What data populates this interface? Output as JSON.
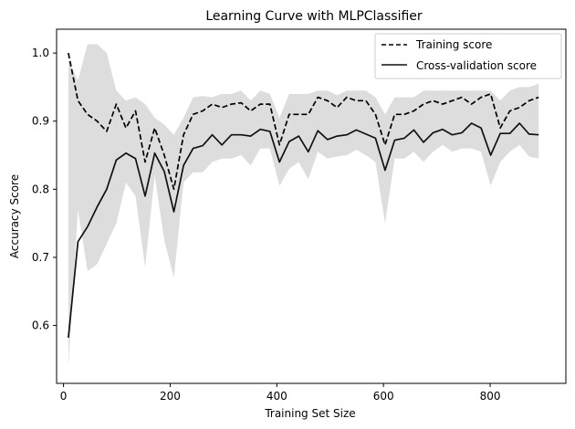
{
  "chart_data": {
    "type": "line",
    "title": "Learning Curve with MLPClassifier",
    "xlabel": "Training Set Size",
    "ylabel": "Accuracy Score",
    "xlim": [
      -13,
      942
    ],
    "ylim": [
      0.515,
      1.035
    ],
    "xticks": [
      0,
      200,
      400,
      600,
      800
    ],
    "yticks": [
      0.6,
      0.7,
      0.8,
      0.9,
      1.0
    ],
    "ytick_labels": [
      "0.6",
      "0.7",
      "0.8",
      "0.9",
      "1.0"
    ],
    "legend": {
      "position": "top-right"
    },
    "colors": {
      "training": "#000000",
      "cv": "#111111",
      "band": "#dddddd"
    },
    "x": [
      9,
      27,
      45,
      63,
      81,
      99,
      117,
      135,
      153,
      171,
      189,
      207,
      225,
      243,
      261,
      279,
      297,
      315,
      333,
      351,
      369,
      387,
      405,
      423,
      441,
      459,
      477,
      495,
      513,
      531,
      549,
      567,
      585,
      603,
      621,
      639,
      657,
      675,
      693,
      711,
      729,
      747,
      765,
      783,
      801,
      819,
      837,
      855,
      873,
      891
    ],
    "series": [
      {
        "name": "Training score",
        "style": "dashed",
        "values": [
          1.0,
          0.93,
          0.91,
          0.9,
          0.885,
          0.925,
          0.89,
          0.915,
          0.84,
          0.89,
          0.85,
          0.8,
          0.88,
          0.91,
          0.915,
          0.925,
          0.92,
          0.925,
          0.927,
          0.915,
          0.925,
          0.925,
          0.865,
          0.91,
          0.91,
          0.91,
          0.935,
          0.93,
          0.92,
          0.935,
          0.93,
          0.93,
          0.91,
          0.865,
          0.91,
          0.91,
          0.915,
          0.925,
          0.93,
          0.925,
          0.93,
          0.935,
          0.925,
          0.935,
          0.94,
          0.89,
          0.915,
          0.92,
          0.93,
          0.935
        ]
      },
      {
        "name": "Cross-validation score",
        "style": "solid",
        "values": [
          0.582,
          0.723,
          0.745,
          0.774,
          0.8,
          0.843,
          0.853,
          0.845,
          0.79,
          0.853,
          0.826,
          0.767,
          0.835,
          0.86,
          0.864,
          0.88,
          0.865,
          0.88,
          0.88,
          0.878,
          0.888,
          0.885,
          0.84,
          0.87,
          0.878,
          0.855,
          0.886,
          0.873,
          0.878,
          0.88,
          0.887,
          0.881,
          0.875,
          0.828,
          0.872,
          0.875,
          0.887,
          0.869,
          0.883,
          0.888,
          0.88,
          0.883,
          0.897,
          0.89,
          0.85,
          0.882,
          0.882,
          0.897,
          0.881,
          0.88
        ]
      }
    ],
    "band": {
      "upper": [
        0.99,
        0.96,
        1.013,
        1.013,
        1.0,
        0.945,
        0.93,
        0.935,
        0.925,
        0.905,
        0.895,
        0.88,
        0.905,
        0.935,
        0.937,
        0.935,
        0.94,
        0.94,
        0.945,
        0.93,
        0.945,
        0.94,
        0.905,
        0.94,
        0.94,
        0.94,
        0.945,
        0.945,
        0.938,
        0.945,
        0.945,
        0.945,
        0.935,
        0.91,
        0.935,
        0.935,
        0.935,
        0.945,
        0.945,
        0.945,
        0.945,
        0.945,
        0.945,
        0.945,
        0.945,
        0.93,
        0.945,
        0.95,
        0.95,
        0.955
      ],
      "lower": [
        0.54,
        0.77,
        0.68,
        0.69,
        0.72,
        0.75,
        0.81,
        0.79,
        0.685,
        0.82,
        0.725,
        0.67,
        0.81,
        0.825,
        0.825,
        0.84,
        0.845,
        0.845,
        0.85,
        0.835,
        0.86,
        0.86,
        0.805,
        0.83,
        0.84,
        0.815,
        0.855,
        0.845,
        0.848,
        0.85,
        0.858,
        0.85,
        0.84,
        0.75,
        0.845,
        0.845,
        0.855,
        0.84,
        0.855,
        0.865,
        0.855,
        0.86,
        0.86,
        0.855,
        0.805,
        0.84,
        0.855,
        0.865,
        0.848,
        0.845
      ]
    }
  }
}
